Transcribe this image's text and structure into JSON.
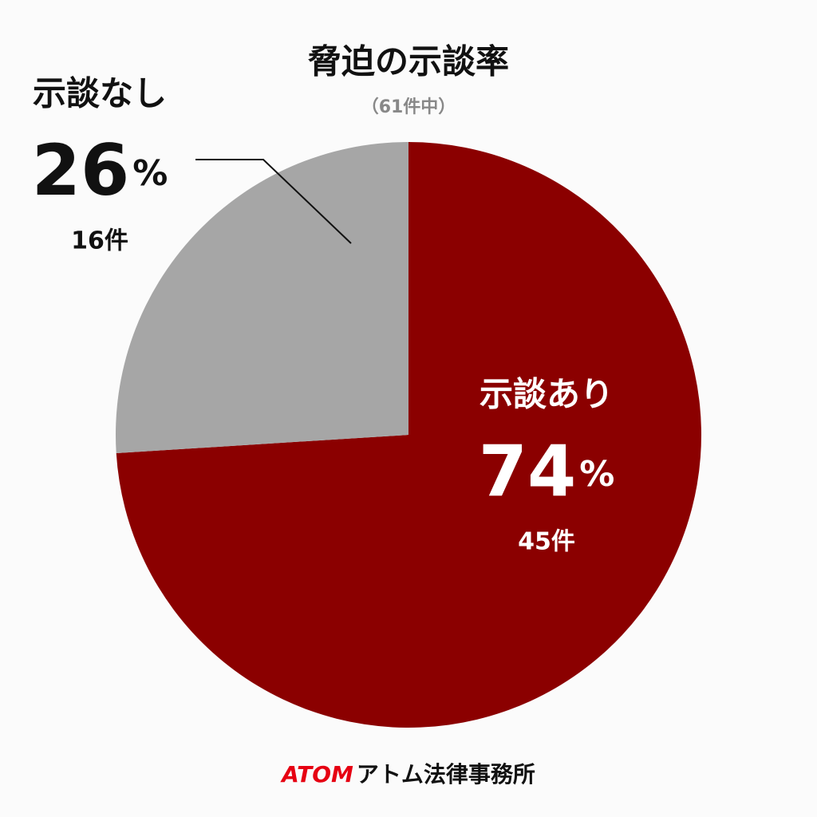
{
  "chart_data": {
    "type": "pie",
    "title": "脅迫の示談率",
    "subtitle": "（61件中）",
    "categories": [
      "示談あり",
      "示談なし"
    ],
    "values": [
      74,
      26
    ],
    "value_labels": [
      "74%",
      "26%"
    ],
    "count_labels": [
      "45件",
      "16件"
    ],
    "colors": [
      "#8b0000",
      "#a6a6a6"
    ]
  },
  "footer": {
    "brand": "ATOM",
    "name": "アトム法律事務所"
  }
}
